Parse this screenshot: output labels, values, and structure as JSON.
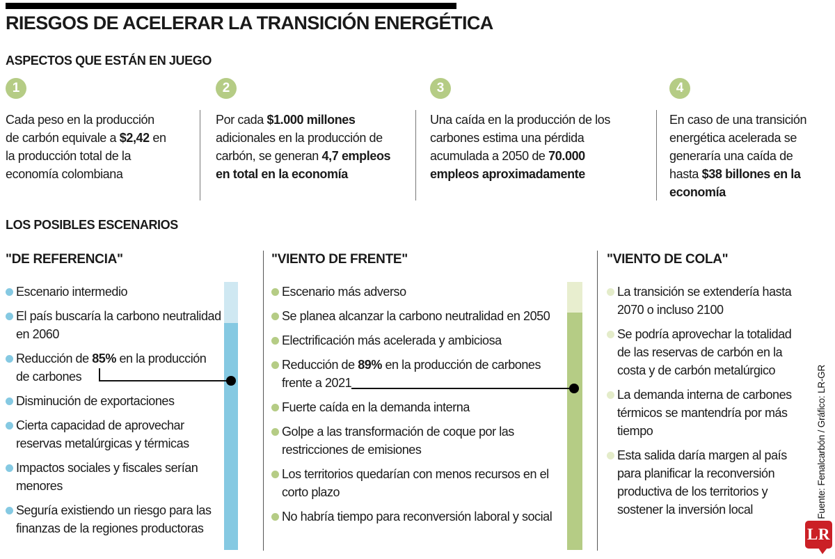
{
  "header": {
    "title": "RIESGOS DE ACELERAR LA TRANSICIÓN ENERGÉTICA",
    "section1_title": "ASPECTOS QUE ESTÁN EN JUEGO",
    "section2_title": "LOS POSIBLES ESCENARIOS"
  },
  "aspects": [
    {
      "number": "1",
      "text": [
        {
          "t": "Cada peso en la producción de carbón equivale a "
        },
        {
          "t": "$2,42",
          "b": true
        },
        {
          "t": " en la producción total de la economía colombiana"
        }
      ]
    },
    {
      "number": "2",
      "text": [
        {
          "t": "Por cada "
        },
        {
          "t": "$1.000 millones",
          "b": true
        },
        {
          "t": " adicionales en la producción de carbón, se generan "
        },
        {
          "t": "4,7 empleos en total en la economía",
          "b": true
        }
      ]
    },
    {
      "number": "3",
      "text": [
        {
          "t": "Una caída en la producción de los carbones estima una pérdida acumulada a 2050 de "
        },
        {
          "t": "70.000 empleos aproximadamente",
          "b": true
        }
      ]
    },
    {
      "number": "4",
      "text": [
        {
          "t": "En caso de una transición energética acelerada se generaría una caída de hasta "
        },
        {
          "t": "$38 billones en la economía",
          "b": true
        }
      ]
    }
  ],
  "scenarios": [
    {
      "title": "\"DE REFERENCIA\"",
      "bullet_color": "#85c9e2",
      "bar_light_color": "#cfe8f2",
      "bar_dark_color": "#85c9e2",
      "items": [
        [
          {
            "t": "Escenario intermedio"
          }
        ],
        [
          {
            "t": "El país buscaría la carbono neutralidad en 2060"
          }
        ],
        [
          {
            "t": "Reducción de "
          },
          {
            "t": "85%",
            "b": true
          },
          {
            "t": " en la producción de carbones"
          }
        ],
        [
          {
            "t": "Disminución de exportaciones"
          }
        ],
        [
          {
            "t": "Cierta capacidad de aprovechar reservas metalúrgicas y térmicas"
          }
        ],
        [
          {
            "t": "Impactos sociales y fiscales serían menores"
          }
        ],
        [
          {
            "t": "Seguría existiendo un riesgo para las finanzas de la regiones productoras"
          }
        ]
      ]
    },
    {
      "title": "\"VIENTO DE FRENTE\"",
      "bullet_color": "#b5cc85",
      "bar_light_color": "#e8eecf",
      "bar_dark_color": "#b5cc85",
      "items": [
        [
          {
            "t": "Escenario más adverso"
          }
        ],
        [
          {
            "t": "Se planea alcanzar la carbono neutralidad en 2050"
          }
        ],
        [
          {
            "t": "Electrificación más acelerada y ambiciosa"
          }
        ],
        [
          {
            "t": "Reducción de "
          },
          {
            "t": "89%",
            "b": true
          },
          {
            "t": " en la producción de carbones frente a 2021"
          }
        ],
        [
          {
            "t": "Fuerte caída en la demanda interna"
          }
        ],
        [
          {
            "t": "Golpe a las transformación de coque por las restricciones de emisiones"
          }
        ],
        [
          {
            "t": "Los territorios quedarían con menos recursos en el corto plazo"
          }
        ],
        [
          {
            "t": "No habría tiempo para reconversión laboral y social"
          }
        ]
      ]
    },
    {
      "title": "\"VIENTO DE COLA\"",
      "bullet_color": "#e4ecca",
      "items": [
        [
          {
            "t": "La transición se extendería hasta 2070 o incluso 2100"
          }
        ],
        [
          {
            "t": "Se podría aprovechar la totalidad de las reservas de carbón en la costa y de carbón metalúrgico"
          }
        ],
        [
          {
            "t": "La demanda interna de carbones térmicos se mantendría por más tiempo"
          }
        ],
        [
          {
            "t": "Esta salida daría margen al país para planificar la reconversión productiva de los territorios y sostener la inversión local"
          }
        ]
      ]
    }
  ],
  "credit": {
    "text": "Fuente: Fenalcarbón / Gráfico: LR-GR",
    "logo_text": "LR"
  },
  "colors": {
    "accent-green": "#b5cc85",
    "light-green": "#e8eecf",
    "pale-green": "#e4ecca",
    "accent-blue": "#85c9e2",
    "light-blue": "#cfe8f2",
    "logo-red": "#cb2026"
  }
}
